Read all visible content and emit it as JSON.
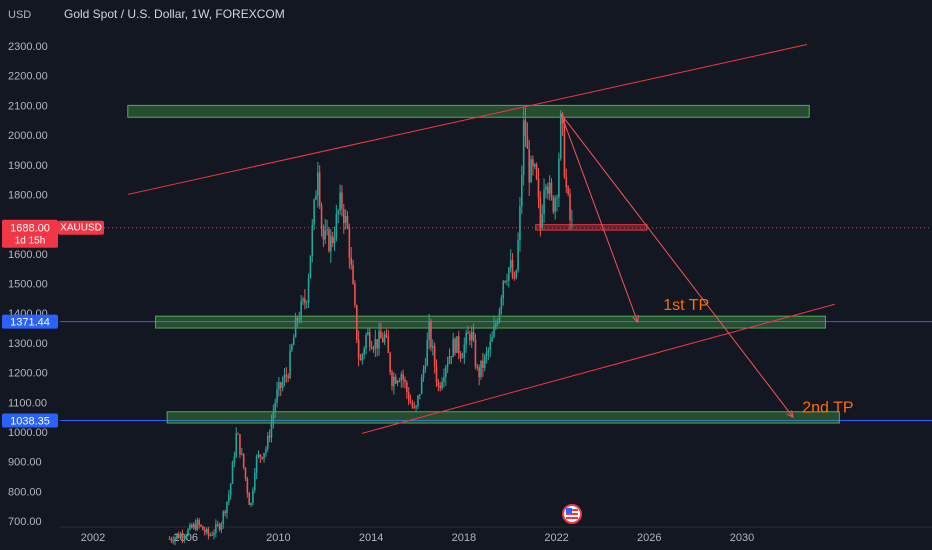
{
  "header": {
    "currency": "USD",
    "title": "Gold Spot / U.S. Dollar, 1W, FOREXCOM"
  },
  "colors": {
    "background": "#131722",
    "up_candle": "#26a69a",
    "down_candle": "#ef5350",
    "zone_fill": "#4caf50",
    "trendline": "#f23645",
    "arrow": "#f7525f",
    "blue_line": "#2962ff",
    "tp_text": "#ff6d00",
    "price_badge": "#f23645",
    "level_badge": "#2962ff"
  },
  "price_badge": {
    "value": "1688.00",
    "countdown": "1d 15h",
    "symbol": "XAUUSD"
  },
  "level_badges": [
    {
      "value": "1371.44",
      "price": 1371.44
    },
    {
      "value": "1038.35",
      "price": 1038.35
    }
  ],
  "annotations": {
    "tp1": "1st TP",
    "tp2": "2nd TP"
  },
  "flag_icon": "us-flag-icon",
  "chart_data": {
    "type": "candlestick",
    "symbol": "XAUUSD",
    "interval": "1W",
    "y_ticks": [
      700,
      800,
      900,
      1000,
      1100,
      1200,
      1300,
      1400,
      1500,
      1600,
      1700,
      1800,
      1900,
      2000,
      2100,
      2200,
      2300
    ],
    "y_tick_labels": [
      "700.00",
      "800.00",
      "900.00",
      "1000.00",
      "1100.00",
      "1200.00",
      "1300.00",
      "1400.00",
      "1500.00",
      "1600.00",
      "1700.00",
      "1800.00",
      "1900.00",
      "2000.00",
      "2100.00",
      "2200.00",
      "2300.00"
    ],
    "x_ticks": [
      2002,
      2006,
      2010,
      2014,
      2018,
      2022,
      2026,
      2030
    ],
    "x_tick_labels": [
      "2002",
      "2006",
      "2010",
      "2014",
      "2018",
      "2022",
      "2026",
      "2030"
    ],
    "ylim": [
      680,
      2370
    ],
    "xlim": [
      1999.5,
      2034.5
    ],
    "price_path": [
      [
        2005.3,
        640
      ],
      [
        2006.0,
        660
      ],
      [
        2006.5,
        690
      ],
      [
        2007.0,
        650
      ],
      [
        2007.5,
        690
      ],
      [
        2007.9,
        800
      ],
      [
        2008.2,
        1000
      ],
      [
        2008.5,
        880
      ],
      [
        2008.8,
        740
      ],
      [
        2009.0,
        900
      ],
      [
        2009.5,
        950
      ],
      [
        2009.9,
        1120
      ],
      [
        2010.4,
        1200
      ],
      [
        2010.8,
        1380
      ],
      [
        2011.2,
        1450
      ],
      [
        2011.6,
        1800
      ],
      [
        2011.7,
        1910
      ],
      [
        2011.9,
        1650
      ],
      [
        2012.3,
        1640
      ],
      [
        2012.7,
        1780
      ],
      [
        2013.0,
        1670
      ],
      [
        2013.3,
        1400
      ],
      [
        2013.5,
        1220
      ],
      [
        2013.8,
        1330
      ],
      [
        2014.2,
        1300
      ],
      [
        2014.6,
        1320
      ],
      [
        2014.9,
        1180
      ],
      [
        2015.3,
        1200
      ],
      [
        2015.6,
        1120
      ],
      [
        2015.9,
        1060
      ],
      [
        2016.2,
        1180
      ],
      [
        2016.5,
        1340
      ],
      [
        2016.9,
        1150
      ],
      [
        2017.2,
        1230
      ],
      [
        2017.6,
        1300
      ],
      [
        2017.9,
        1270
      ],
      [
        2018.3,
        1340
      ],
      [
        2018.6,
        1190
      ],
      [
        2018.9,
        1240
      ],
      [
        2019.2,
        1300
      ],
      [
        2019.5,
        1410
      ],
      [
        2019.7,
        1520
      ],
      [
        2020.0,
        1560
      ],
      [
        2020.2,
        1480
      ],
      [
        2020.4,
        1700
      ],
      [
        2020.6,
        2060
      ],
      [
        2020.8,
        1880
      ],
      [
        2021.1,
        1860
      ],
      [
        2021.3,
        1690
      ],
      [
        2021.5,
        1890
      ],
      [
        2021.8,
        1760
      ],
      [
        2022.0,
        1810
      ],
      [
        2022.2,
        2060
      ],
      [
        2022.4,
        1830
      ],
      [
        2022.6,
        1700
      ],
      [
        2022.7,
        1688
      ]
    ],
    "zones": [
      {
        "y1": 2060,
        "y2": 2100,
        "x1": 2003.5,
        "x2": 2032.9
      },
      {
        "y1": 1350,
        "y2": 1390,
        "x1": 2004.7,
        "x2": 2033.6
      },
      {
        "y1": 1030,
        "y2": 1068,
        "x1": 2005.2,
        "x2": 2034.2
      },
      {
        "y1": 1680,
        "y2": 1698,
        "x1": 2021.1,
        "x2": 2025.9
      }
    ],
    "trendlines": [
      {
        "from": [
          2003.5,
          1800
        ],
        "to": [
          2032.8,
          2305
        ]
      },
      {
        "from": [
          2013.6,
          995
        ],
        "to": [
          2034.0,
          1430
        ]
      }
    ],
    "arrows": [
      {
        "from": [
          2022.2,
          2070
        ],
        "to": [
          2025.5,
          1370
        ]
      },
      {
        "from": [
          2022.2,
          2070
        ],
        "to": [
          2032.2,
          1050
        ]
      }
    ],
    "tp_labels": [
      {
        "x": 2026.6,
        "y": 1410
      },
      {
        "x": 2032.6,
        "y": 1065
      }
    ],
    "current_price": 1688.0,
    "levels": [
      1371.44,
      1038.35
    ],
    "grid": false
  }
}
